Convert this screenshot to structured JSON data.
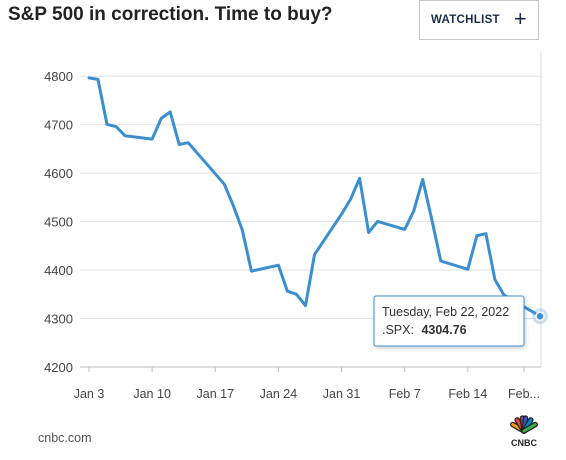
{
  "header": {
    "title": "S&P 500 in correction. Time to buy?",
    "watchlist_label": "WATCHLIST",
    "watchlist_icon": "plus-icon"
  },
  "chart_data": {
    "type": "line",
    "x": [
      "2022-01-03",
      "2022-01-04",
      "2022-01-05",
      "2022-01-06",
      "2022-01-07",
      "2022-01-10",
      "2022-01-11",
      "2022-01-12",
      "2022-01-13",
      "2022-01-14",
      "2022-01-18",
      "2022-01-19",
      "2022-01-20",
      "2022-01-21",
      "2022-01-24",
      "2022-01-25",
      "2022-01-26",
      "2022-01-27",
      "2022-01-28",
      "2022-01-31",
      "2022-02-01",
      "2022-02-02",
      "2022-02-03",
      "2022-02-04",
      "2022-02-07",
      "2022-02-08",
      "2022-02-09",
      "2022-02-10",
      "2022-02-11",
      "2022-02-14",
      "2022-02-15",
      "2022-02-16",
      "2022-02-17",
      "2022-02-18",
      "2022-02-22"
    ],
    "series": [
      {
        "values": [
          4796.56,
          4793.54,
          4700.58,
          4696.05,
          4677.03,
          4670.29,
          4713.07,
          4726.35,
          4659.03,
          4662.85,
          4577.11,
          4532.76,
          4482.73,
          4397.94,
          4410.13,
          4356.45,
          4349.93,
          4326.51,
          4431.85,
          4515.55,
          4546.54,
          4589.38,
          4477.44,
          4500.53,
          4483.87,
          4521.54,
          4587.18,
          4504.08,
          4418.64,
          4401.67,
          4471.07,
          4475.01,
          4380.26,
          4348.87,
          4304.76
        ]
      }
    ],
    "ylim": [
      4200,
      4850
    ],
    "yticks": [
      4200,
      4300,
      4400,
      4500,
      4600,
      4700,
      4800
    ],
    "xtick_labels": [
      "Jan 3",
      "Jan 10",
      "Jan 17",
      "Jan 24",
      "Jan 31",
      "Feb 7",
      "Feb 14",
      "Feb..."
    ],
    "grid": true,
    "line_color": "#3b8fd1",
    "tooltip": {
      "date": "Tuesday, Feb 22, 2022",
      "symbol_label": ".SPX:",
      "value": "4304.76"
    }
  },
  "footer": {
    "source": "cnbc.com",
    "logo_text": "CNBC",
    "peacock_colors": [
      "#f9a01b",
      "#ef3e42",
      "#a54399",
      "#2f5bb7",
      "#0089cf",
      "#3dab48"
    ]
  }
}
